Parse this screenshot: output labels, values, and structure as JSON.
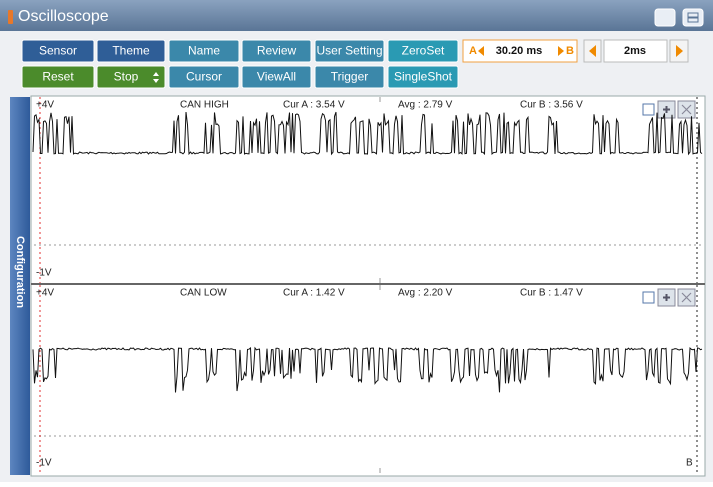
{
  "window": {
    "title": "Oscilloscope"
  },
  "toolbar": {
    "row1": [
      "Sensor",
      "Theme",
      "Name",
      "Review",
      "User Setting",
      "ZeroSet"
    ],
    "row2": [
      "Reset",
      "Stop",
      "Cursor",
      "ViewAll",
      "Trigger",
      "SingleShot"
    ],
    "cursor": {
      "a": "A",
      "time": "30.20 ms",
      "b": "B"
    },
    "timebase": "2ms"
  },
  "side_tab": "Configuration",
  "panels": [
    {
      "top": "+4V",
      "name": "CAN HIGH",
      "cur_a": "Cur A : 3.54 V",
      "avg": "Avg : 2.79 V",
      "cur_b": "Cur B : 3.56 V",
      "bottom": "-1V"
    },
    {
      "top": "+4V",
      "name": "CAN LOW",
      "cur_a": "Cur A : 1.42 V",
      "avg": "Avg : 2.20 V",
      "cur_b": "Cur B : 1.47 V",
      "bottom": "-1V",
      "marker": "B"
    }
  ]
}
